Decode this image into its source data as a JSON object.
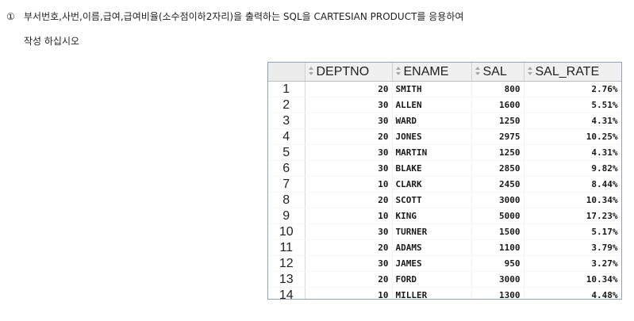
{
  "question": {
    "number": "①",
    "line1": "부서번호,사번,이름,급여,급여비율(소수점이하2자리)을 출력하는 SQL을 CARTESIAN PRODUCT를 응용하여",
    "line2": "작성 하십시오"
  },
  "grid": {
    "columns": [
      "DEPTNO",
      "ENAME",
      "SAL",
      "SAL_RATE"
    ],
    "rows": [
      {
        "n": "1",
        "deptno": "20",
        "ename": "SMITH",
        "sal": "800",
        "rate": "2.76%"
      },
      {
        "n": "2",
        "deptno": "30",
        "ename": "ALLEN",
        "sal": "1600",
        "rate": "5.51%"
      },
      {
        "n": "3",
        "deptno": "30",
        "ename": "WARD",
        "sal": "1250",
        "rate": "4.31%"
      },
      {
        "n": "4",
        "deptno": "20",
        "ename": "JONES",
        "sal": "2975",
        "rate": "10.25%"
      },
      {
        "n": "5",
        "deptno": "30",
        "ename": "MARTIN",
        "sal": "1250",
        "rate": "4.31%"
      },
      {
        "n": "6",
        "deptno": "30",
        "ename": "BLAKE",
        "sal": "2850",
        "rate": "9.82%"
      },
      {
        "n": "7",
        "deptno": "10",
        "ename": "CLARK",
        "sal": "2450",
        "rate": "8.44%"
      },
      {
        "n": "8",
        "deptno": "20",
        "ename": "SCOTT",
        "sal": "3000",
        "rate": "10.34%"
      },
      {
        "n": "9",
        "deptno": "10",
        "ename": "KING",
        "sal": "5000",
        "rate": "17.23%"
      },
      {
        "n": "10",
        "deptno": "30",
        "ename": "TURNER",
        "sal": "1500",
        "rate": "5.17%"
      },
      {
        "n": "11",
        "deptno": "20",
        "ename": "ADAMS",
        "sal": "1100",
        "rate": "3.79%"
      },
      {
        "n": "12",
        "deptno": "30",
        "ename": "JAMES",
        "sal": "950",
        "rate": "3.27%"
      },
      {
        "n": "13",
        "deptno": "20",
        "ename": "FORD",
        "sal": "3000",
        "rate": "10.34%"
      },
      {
        "n": "14",
        "deptno": "10",
        "ename": "MILLER",
        "sal": "1300",
        "rate": "4.48%"
      }
    ]
  },
  "icons": {
    "sort": "sort-arrows-icon"
  }
}
